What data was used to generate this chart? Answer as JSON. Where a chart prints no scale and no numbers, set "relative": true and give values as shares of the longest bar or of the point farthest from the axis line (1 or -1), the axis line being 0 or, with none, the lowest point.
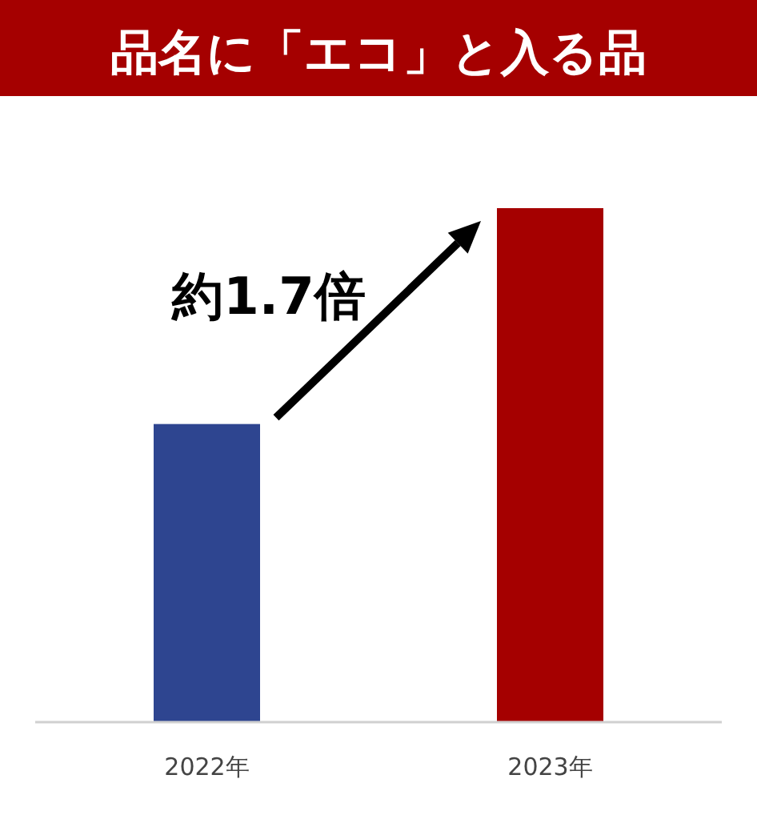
{
  "chart_data": {
    "type": "bar",
    "title": "品名に「エコ」と入る品",
    "categories": [
      "2022年",
      "2023年"
    ],
    "values": [
      0.58,
      1
    ],
    "colors": [
      "#2e4590",
      "#a50000"
    ],
    "relative": true,
    "annotations": [
      "約1.7倍"
    ]
  }
}
